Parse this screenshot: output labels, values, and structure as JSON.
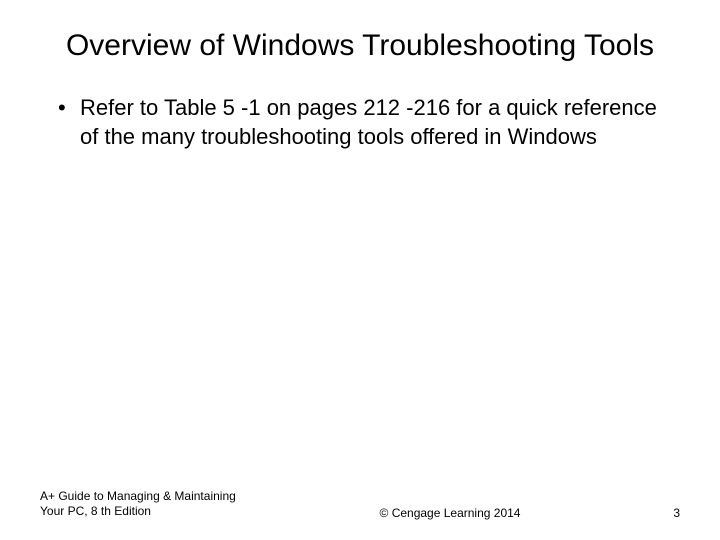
{
  "slide": {
    "title": "Overview of Windows Troubleshooting Tools",
    "bullets": [
      "Refer to Table 5 -1 on pages 212 -216 for a quick reference of the many troubleshooting tools offered in Windows"
    ],
    "footer": {
      "left": "A+ Guide to Managing & Maintaining Your PC, 8 th Edition",
      "center": "© Cengage Learning  2014",
      "page": "3"
    },
    "style": {
      "background_color": "#ffffff",
      "text_color": "#000000",
      "title_fontsize": 30,
      "body_fontsize": 22,
      "footer_fontsize": 12,
      "font_family": "Arial"
    }
  }
}
